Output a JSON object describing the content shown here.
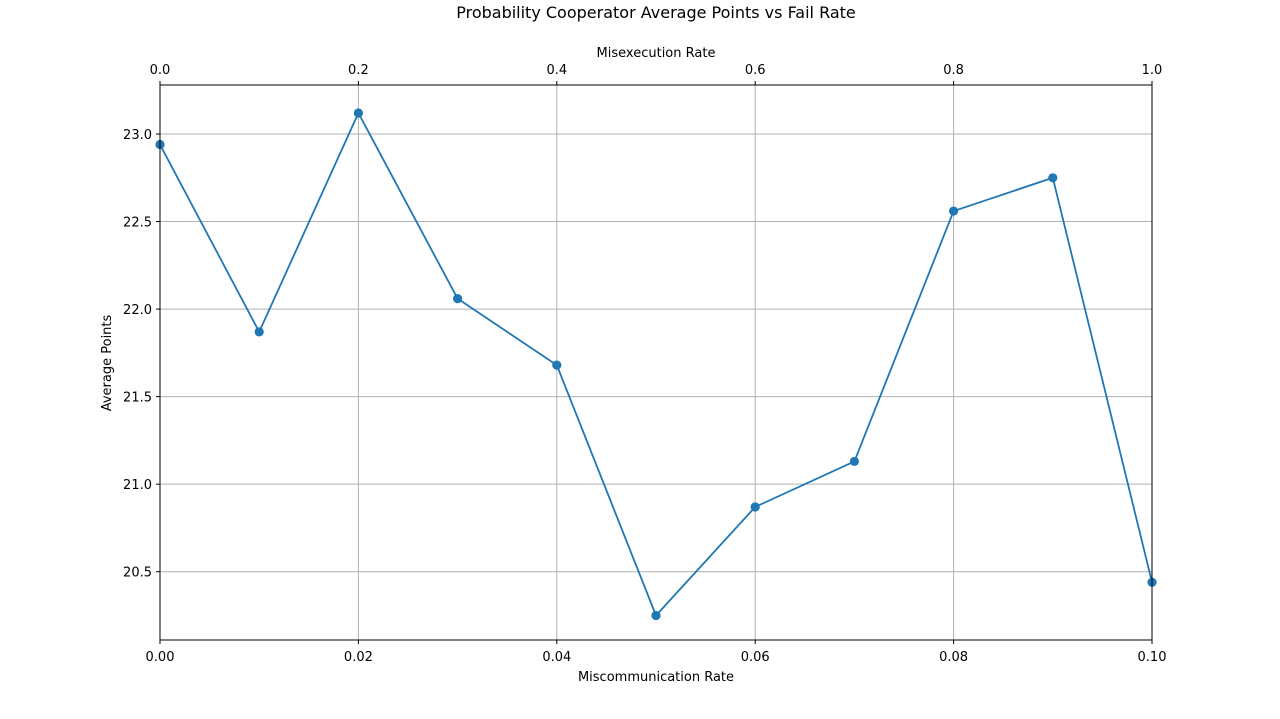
{
  "chart_data": {
    "type": "line",
    "title": "Probability Cooperator Average Points vs Fail Rate",
    "xlabel": "Miscommunication Rate",
    "ylabel": "Average Points",
    "x2label": "Misexecution Rate",
    "x": [
      0.0,
      0.01,
      0.02,
      0.03,
      0.04,
      0.05,
      0.06,
      0.07,
      0.08,
      0.09,
      0.1
    ],
    "x2": [
      0.0,
      0.1,
      0.2,
      0.3,
      0.4,
      0.5,
      0.6,
      0.7,
      0.8,
      0.9,
      1.0
    ],
    "series": [
      {
        "values": [
          22.94,
          21.87,
          23.12,
          22.06,
          21.68,
          20.25,
          20.87,
          21.13,
          22.56,
          22.75,
          20.44
        ]
      }
    ],
    "xlim": [
      0.0,
      0.1
    ],
    "x2lim": [
      0.0,
      1.0
    ],
    "ylim": [
      20.11,
      23.28
    ],
    "xticks": [
      "0.00",
      "0.02",
      "0.04",
      "0.06",
      "0.08",
      "0.10"
    ],
    "x2ticks": [
      "0.0",
      "0.2",
      "0.4",
      "0.6",
      "0.8",
      "1.0"
    ],
    "yticks": [
      "20.5",
      "21.0",
      "21.5",
      "22.0",
      "22.5",
      "23.0"
    ],
    "grid": true,
    "line_color": "#1f77b4",
    "grid_color": "#b0b0b0"
  }
}
